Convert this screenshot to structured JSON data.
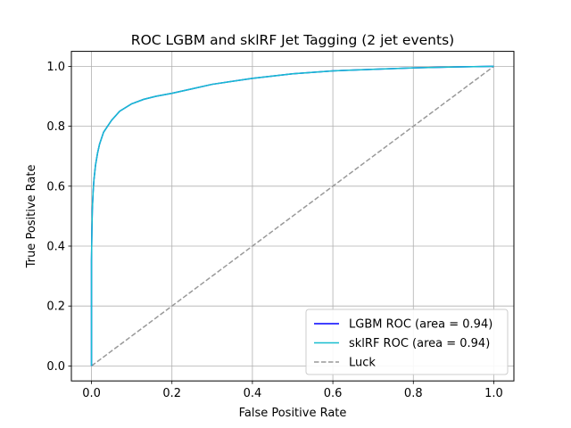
{
  "chart_data": {
    "type": "line",
    "title": "ROC LGBM and sklRF Jet Tagging (2 jet events)",
    "xlabel": "False Positive Rate",
    "ylabel": "True Positive Rate",
    "xlim": [
      -0.05,
      1.05
    ],
    "ylim": [
      -0.05,
      1.05
    ],
    "xticks": [
      0.0,
      0.2,
      0.4,
      0.6,
      0.8,
      1.0
    ],
    "yticks": [
      0.0,
      0.2,
      0.4,
      0.6,
      0.8,
      1.0
    ],
    "xtick_labels": [
      "0.0",
      "0.2",
      "0.4",
      "0.6",
      "0.8",
      "1.0"
    ],
    "ytick_labels": [
      "0.0",
      "0.2",
      "0.4",
      "0.6",
      "0.8",
      "1.0"
    ],
    "grid": true,
    "legend_position": "lower-right",
    "series": [
      {
        "name": "LGBM ROC (area = 0.94)",
        "color": "#0000ff",
        "style": "solid",
        "x": [
          0.0,
          0.0,
          0.001,
          0.002,
          0.004,
          0.006,
          0.01,
          0.015,
          0.02,
          0.03,
          0.04,
          0.05,
          0.07,
          0.1,
          0.13,
          0.16,
          0.2,
          0.25,
          0.3,
          0.4,
          0.5,
          0.6,
          0.7,
          0.8,
          0.9,
          1.0
        ],
        "y": [
          0.0,
          0.35,
          0.45,
          0.52,
          0.58,
          0.62,
          0.67,
          0.71,
          0.74,
          0.78,
          0.8,
          0.82,
          0.85,
          0.875,
          0.89,
          0.9,
          0.91,
          0.925,
          0.94,
          0.96,
          0.975,
          0.985,
          0.99,
          0.995,
          0.998,
          1.0
        ]
      },
      {
        "name": "sklRF ROC (area = 0.94)",
        "color": "#17becf",
        "style": "solid",
        "x": [
          0.0,
          0.0,
          0.001,
          0.002,
          0.004,
          0.006,
          0.01,
          0.015,
          0.02,
          0.03,
          0.04,
          0.05,
          0.07,
          0.1,
          0.13,
          0.16,
          0.2,
          0.25,
          0.3,
          0.4,
          0.5,
          0.6,
          0.7,
          0.8,
          0.9,
          1.0
        ],
        "y": [
          0.0,
          0.35,
          0.45,
          0.52,
          0.58,
          0.62,
          0.67,
          0.71,
          0.74,
          0.78,
          0.8,
          0.82,
          0.85,
          0.875,
          0.89,
          0.9,
          0.91,
          0.925,
          0.94,
          0.96,
          0.975,
          0.985,
          0.99,
          0.995,
          0.998,
          1.0
        ]
      },
      {
        "name": "Luck",
        "color": "#999999",
        "style": "dashed",
        "x": [
          0.0,
          1.0
        ],
        "y": [
          0.0,
          1.0
        ]
      }
    ]
  }
}
